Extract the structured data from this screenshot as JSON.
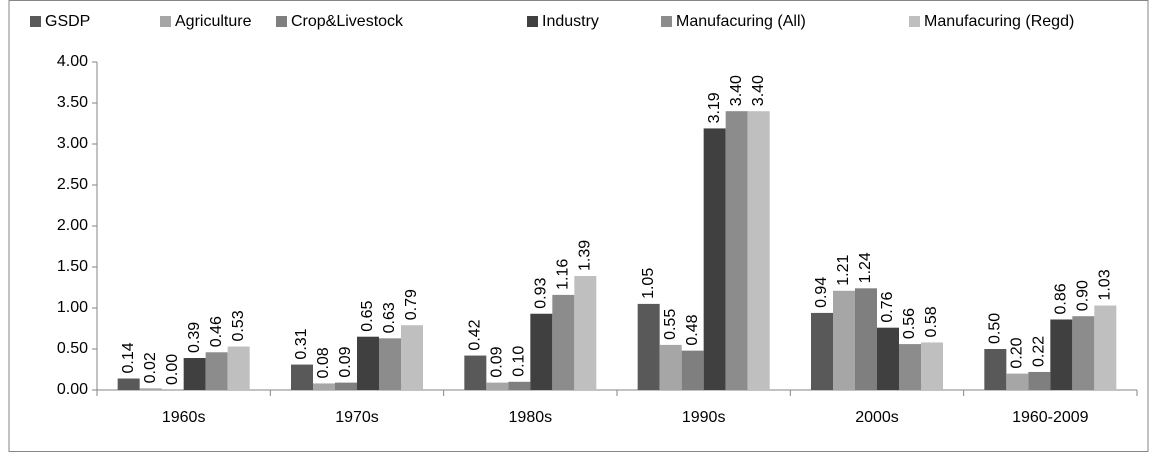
{
  "chart_data": {
    "type": "bar",
    "categories": [
      "1960s",
      "1970s",
      "1980s",
      "1990s",
      "2000s",
      "1960-2009"
    ],
    "series": [
      {
        "name": "GSDP",
        "color": "#595959",
        "values": [
          0.14,
          0.31,
          0.42,
          1.05,
          0.94,
          0.5
        ],
        "value_labels": [
          "0.14",
          "0.31",
          "0.42",
          "1.05",
          "0.94",
          "0.50"
        ]
      },
      {
        "name": "Agriculture",
        "color": "#a6a6a6",
        "values": [
          0.02,
          0.08,
          0.09,
          0.55,
          1.21,
          0.2
        ],
        "value_labels": [
          "0.02",
          "0.08",
          "0.09",
          "0.55",
          "1.21",
          "0.20"
        ]
      },
      {
        "name": "Crop&Livestock",
        "color": "#7f7f7f",
        "values": [
          0,
          0.09,
          0.1,
          0.48,
          1.24,
          0.22
        ],
        "value_labels": [
          "0.00",
          "0.09",
          "0.10",
          "0.48",
          "1.24",
          "0.22"
        ]
      },
      {
        "name": "Industry",
        "color": "#404040",
        "values": [
          0.39,
          0.65,
          0.93,
          3.19,
          0.76,
          0.86
        ],
        "value_labels": [
          "0.39",
          "0.65",
          "0.93",
          "3.19",
          "0.76",
          "0.86"
        ]
      },
      {
        "name": "Manufacuring (All)",
        "color": "#8c8c8c",
        "values": [
          0.46,
          0.63,
          1.16,
          3.4,
          0.56,
          0.9
        ],
        "value_labels": [
          "0.46",
          "0.63",
          "1.16",
          "3.40",
          "0.56",
          "0.90"
        ]
      },
      {
        "name": "Manufacuring (Regd)",
        "color": "#bfbfbf",
        "values": [
          0.53,
          0.79,
          1.39,
          3.4,
          0.58,
          1.03
        ],
        "value_labels": [
          "0.53",
          "0.79",
          "1.39",
          "3.40",
          "0.58",
          "1.03"
        ]
      }
    ],
    "ylim": [
      0,
      4
    ],
    "yticks": [
      {
        "value": 0,
        "label": "0.00"
      },
      {
        "value": 0.5,
        "label": "0.50"
      },
      {
        "value": 1,
        "label": "1.00"
      },
      {
        "value": 1.5,
        "label": "1.50"
      },
      {
        "value": 2,
        "label": "2.00"
      },
      {
        "value": 2.5,
        "label": "2.50"
      },
      {
        "value": 3,
        "label": "3.00"
      },
      {
        "value": 3.5,
        "label": "3.50"
      },
      {
        "value": 4,
        "label": "4.00"
      }
    ],
    "grid": false,
    "legend": "top"
  }
}
